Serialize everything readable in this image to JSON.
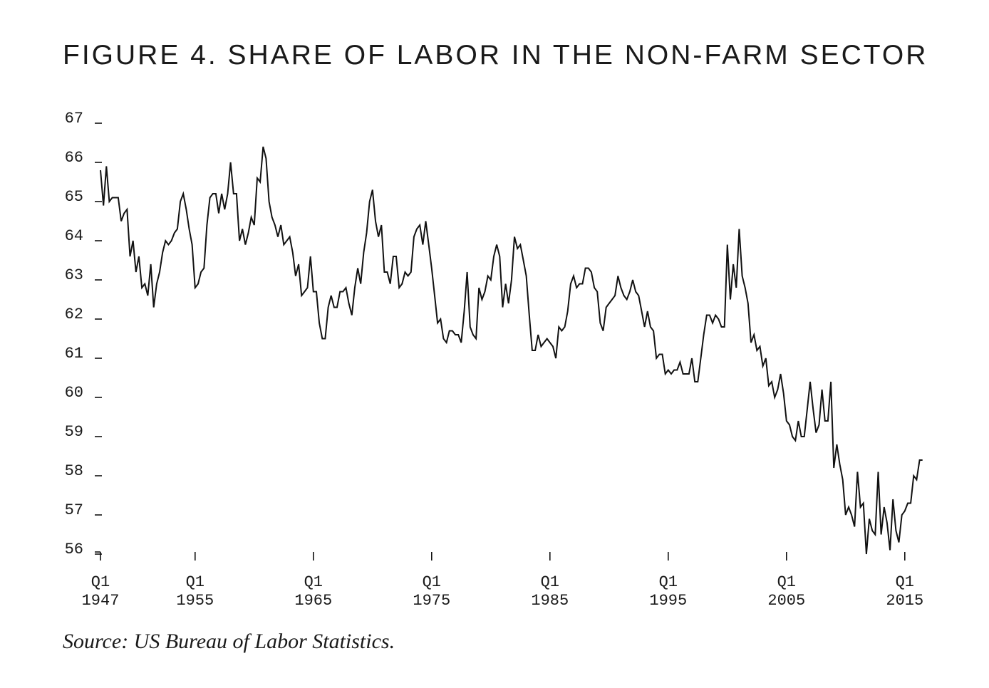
{
  "title": "FIGURE 4. SHARE OF LABOR IN THE NON-FARM SECTOR",
  "source": "Source: US Bureau of Labor Statistics.",
  "colors": {
    "line": "#111111",
    "text": "#1a1a1a",
    "background": "#ffffff"
  },
  "chart_data": {
    "type": "line",
    "title": "FIGURE 4. SHARE OF LABOR IN THE NON-FARM SECTOR",
    "xlabel": "",
    "ylabel": "",
    "ylim": [
      56,
      67
    ],
    "xlim": [
      1947.0,
      2015.75
    ],
    "grid": false,
    "y_ticks": [
      56,
      57,
      58,
      59,
      60,
      61,
      62,
      63,
      64,
      65,
      66,
      67
    ],
    "x_ticks": [
      {
        "x": 1947.0,
        "label": [
          "Q1",
          "1947"
        ]
      },
      {
        "x": 1955.0,
        "label": [
          "Q1",
          "1955"
        ]
      },
      {
        "x": 1965.0,
        "label": [
          "Q1",
          "1965"
        ]
      },
      {
        "x": 1975.0,
        "label": [
          "Q1",
          "1975"
        ]
      },
      {
        "x": 1985.0,
        "label": [
          "Q1",
          "1985"
        ]
      },
      {
        "x": 1995.0,
        "label": [
          "Q1",
          "1995"
        ]
      },
      {
        "x": 2005.0,
        "label": [
          "Q1",
          "2005"
        ]
      },
      {
        "x": 2015.0,
        "label": [
          "Q1",
          "2015"
        ]
      }
    ],
    "points": [
      [
        1947.0,
        65.8
      ],
      [
        1947.25,
        64.9
      ],
      [
        1947.5,
        65.9
      ],
      [
        1947.75,
        65.0
      ],
      [
        1948.0,
        65.1
      ],
      [
        1948.5,
        65.1
      ],
      [
        1948.75,
        64.5
      ],
      [
        1949.0,
        64.7
      ],
      [
        1949.25,
        64.8
      ],
      [
        1949.5,
        63.6
      ],
      [
        1949.75,
        64.0
      ],
      [
        1950.0,
        63.2
      ],
      [
        1950.25,
        63.6
      ],
      [
        1950.5,
        62.8
      ],
      [
        1950.75,
        62.9
      ],
      [
        1951.0,
        62.6
      ],
      [
        1951.25,
        63.4
      ],
      [
        1951.5,
        62.3
      ],
      [
        1951.75,
        62.9
      ],
      [
        1952.0,
        63.2
      ],
      [
        1952.25,
        63.7
      ],
      [
        1952.5,
        64.0
      ],
      [
        1952.75,
        63.9
      ],
      [
        1953.0,
        64.0
      ],
      [
        1953.25,
        64.2
      ],
      [
        1953.5,
        64.3
      ],
      [
        1953.75,
        65.0
      ],
      [
        1954.0,
        65.2
      ],
      [
        1954.25,
        64.8
      ],
      [
        1954.5,
        64.3
      ],
      [
        1954.75,
        63.9
      ],
      [
        1955.0,
        62.8
      ],
      [
        1955.25,
        62.9
      ],
      [
        1955.5,
        63.2
      ],
      [
        1955.75,
        63.3
      ],
      [
        1956.0,
        64.4
      ],
      [
        1956.25,
        65.1
      ],
      [
        1956.5,
        65.2
      ],
      [
        1956.75,
        65.2
      ],
      [
        1957.0,
        64.7
      ],
      [
        1957.25,
        65.2
      ],
      [
        1957.5,
        64.8
      ],
      [
        1957.75,
        65.2
      ],
      [
        1958.0,
        66.0
      ],
      [
        1958.25,
        65.2
      ],
      [
        1958.5,
        65.2
      ],
      [
        1958.75,
        64.0
      ],
      [
        1959.0,
        64.3
      ],
      [
        1959.25,
        63.9
      ],
      [
        1959.5,
        64.2
      ],
      [
        1959.75,
        64.6
      ],
      [
        1960.0,
        64.4
      ],
      [
        1960.25,
        65.6
      ],
      [
        1960.5,
        65.5
      ],
      [
        1960.75,
        66.4
      ],
      [
        1961.0,
        66.1
      ],
      [
        1961.25,
        65.0
      ],
      [
        1961.5,
        64.6
      ],
      [
        1961.75,
        64.4
      ],
      [
        1962.0,
        64.1
      ],
      [
        1962.25,
        64.4
      ],
      [
        1962.5,
        63.9
      ],
      [
        1962.75,
        64.0
      ],
      [
        1963.0,
        64.1
      ],
      [
        1963.25,
        63.7
      ],
      [
        1963.5,
        63.1
      ],
      [
        1963.75,
        63.4
      ],
      [
        1964.0,
        62.6
      ],
      [
        1964.25,
        62.7
      ],
      [
        1964.5,
        62.8
      ],
      [
        1964.75,
        63.6
      ],
      [
        1965.0,
        62.7
      ],
      [
        1965.25,
        62.7
      ],
      [
        1965.5,
        61.9
      ],
      [
        1965.75,
        61.5
      ],
      [
        1966.0,
        61.5
      ],
      [
        1966.25,
        62.3
      ],
      [
        1966.5,
        62.6
      ],
      [
        1966.75,
        62.3
      ],
      [
        1967.0,
        62.3
      ],
      [
        1967.25,
        62.7
      ],
      [
        1967.5,
        62.7
      ],
      [
        1967.75,
        62.8
      ],
      [
        1968.0,
        62.4
      ],
      [
        1968.25,
        62.1
      ],
      [
        1968.5,
        62.8
      ],
      [
        1968.75,
        63.3
      ],
      [
        1969.0,
        62.9
      ],
      [
        1969.25,
        63.7
      ],
      [
        1969.5,
        64.2
      ],
      [
        1969.75,
        65.0
      ],
      [
        1970.0,
        65.3
      ],
      [
        1970.25,
        64.5
      ],
      [
        1970.5,
        64.1
      ],
      [
        1970.75,
        64.4
      ],
      [
        1971.0,
        63.2
      ],
      [
        1971.25,
        63.2
      ],
      [
        1971.5,
        62.9
      ],
      [
        1971.75,
        63.6
      ],
      [
        1972.0,
        63.6
      ],
      [
        1972.25,
        62.8
      ],
      [
        1972.5,
        62.9
      ],
      [
        1972.75,
        63.2
      ],
      [
        1973.0,
        63.1
      ],
      [
        1973.25,
        63.2
      ],
      [
        1973.5,
        64.1
      ],
      [
        1973.75,
        64.3
      ],
      [
        1974.0,
        64.4
      ],
      [
        1974.25,
        63.9
      ],
      [
        1974.5,
        64.5
      ],
      [
        1974.75,
        63.9
      ],
      [
        1975.0,
        63.3
      ],
      [
        1975.25,
        62.6
      ],
      [
        1975.5,
        61.9
      ],
      [
        1975.75,
        62.0
      ],
      [
        1976.0,
        61.5
      ],
      [
        1976.25,
        61.4
      ],
      [
        1976.5,
        61.7
      ],
      [
        1976.75,
        61.7
      ],
      [
        1977.0,
        61.6
      ],
      [
        1977.25,
        61.6
      ],
      [
        1977.5,
        61.4
      ],
      [
        1977.75,
        62.2
      ],
      [
        1978.0,
        63.2
      ],
      [
        1978.25,
        61.8
      ],
      [
        1978.5,
        61.6
      ],
      [
        1978.75,
        61.5
      ],
      [
        1979.0,
        62.8
      ],
      [
        1979.25,
        62.5
      ],
      [
        1979.5,
        62.7
      ],
      [
        1979.75,
        63.1
      ],
      [
        1980.0,
        63.0
      ],
      [
        1980.25,
        63.6
      ],
      [
        1980.5,
        63.9
      ],
      [
        1980.75,
        63.6
      ],
      [
        1981.0,
        62.3
      ],
      [
        1981.25,
        62.9
      ],
      [
        1981.5,
        62.4
      ],
      [
        1981.75,
        63.0
      ],
      [
        1982.0,
        64.1
      ],
      [
        1982.25,
        63.8
      ],
      [
        1982.5,
        63.9
      ],
      [
        1982.75,
        63.5
      ],
      [
        1983.0,
        63.1
      ],
      [
        1983.25,
        62.1
      ],
      [
        1983.5,
        61.2
      ],
      [
        1983.75,
        61.2
      ],
      [
        1984.0,
        61.6
      ],
      [
        1984.25,
        61.3
      ],
      [
        1984.5,
        61.4
      ],
      [
        1984.75,
        61.5
      ],
      [
        1985.0,
        61.4
      ],
      [
        1985.25,
        61.3
      ],
      [
        1985.5,
        61.0
      ],
      [
        1985.75,
        61.8
      ],
      [
        1986.0,
        61.7
      ],
      [
        1986.25,
        61.8
      ],
      [
        1986.5,
        62.2
      ],
      [
        1986.75,
        62.9
      ],
      [
        1987.0,
        63.1
      ],
      [
        1987.25,
        62.8
      ],
      [
        1987.5,
        62.9
      ],
      [
        1987.75,
        62.9
      ],
      [
        1988.0,
        63.3
      ],
      [
        1988.25,
        63.3
      ],
      [
        1988.5,
        63.2
      ],
      [
        1988.75,
        62.8
      ],
      [
        1989.0,
        62.7
      ],
      [
        1989.25,
        61.9
      ],
      [
        1989.5,
        61.7
      ],
      [
        1989.75,
        62.3
      ],
      [
        1990.0,
        62.4
      ],
      [
        1990.25,
        62.5
      ],
      [
        1990.5,
        62.6
      ],
      [
        1990.75,
        63.1
      ],
      [
        1991.0,
        62.8
      ],
      [
        1991.25,
        62.6
      ],
      [
        1991.5,
        62.5
      ],
      [
        1991.75,
        62.7
      ],
      [
        1992.0,
        63.0
      ],
      [
        1992.25,
        62.7
      ],
      [
        1992.5,
        62.6
      ],
      [
        1992.75,
        62.2
      ],
      [
        1993.0,
        61.8
      ],
      [
        1993.25,
        62.2
      ],
      [
        1993.5,
        61.8
      ],
      [
        1993.75,
        61.7
      ],
      [
        1994.0,
        61.0
      ],
      [
        1994.25,
        61.1
      ],
      [
        1994.5,
        61.1
      ],
      [
        1994.75,
        60.6
      ],
      [
        1995.0,
        60.7
      ],
      [
        1995.25,
        60.6
      ],
      [
        1995.5,
        60.7
      ],
      [
        1995.75,
        60.7
      ],
      [
        1996.0,
        60.9
      ],
      [
        1996.25,
        60.6
      ],
      [
        1996.5,
        60.6
      ],
      [
        1996.75,
        60.6
      ],
      [
        1997.0,
        61.0
      ],
      [
        1997.25,
        60.4
      ],
      [
        1997.5,
        60.4
      ],
      [
        1997.75,
        61.0
      ],
      [
        1998.0,
        61.6
      ],
      [
        1998.25,
        62.1
      ],
      [
        1998.5,
        62.1
      ],
      [
        1998.75,
        61.9
      ],
      [
        1999.0,
        62.1
      ],
      [
        1999.25,
        62.0
      ],
      [
        1999.5,
        61.8
      ],
      [
        1999.75,
        61.8
      ],
      [
        2000.0,
        63.9
      ],
      [
        2000.25,
        62.5
      ],
      [
        2000.5,
        63.4
      ],
      [
        2000.75,
        62.8
      ],
      [
        2001.0,
        64.3
      ],
      [
        2001.25,
        63.1
      ],
      [
        2001.5,
        62.8
      ],
      [
        2001.75,
        62.4
      ],
      [
        2002.0,
        61.4
      ],
      [
        2002.25,
        61.6
      ],
      [
        2002.5,
        61.2
      ],
      [
        2002.75,
        61.3
      ],
      [
        2003.0,
        60.8
      ],
      [
        2003.25,
        61.0
      ],
      [
        2003.5,
        60.3
      ],
      [
        2003.75,
        60.4
      ],
      [
        2004.0,
        60.0
      ],
      [
        2004.25,
        60.2
      ],
      [
        2004.5,
        60.6
      ],
      [
        2004.75,
        60.1
      ],
      [
        2005.0,
        59.4
      ],
      [
        2005.25,
        59.3
      ],
      [
        2005.5,
        59.0
      ],
      [
        2005.75,
        58.9
      ],
      [
        2006.0,
        59.4
      ],
      [
        2006.25,
        59.0
      ],
      [
        2006.5,
        59.0
      ],
      [
        2006.75,
        59.7
      ],
      [
        2007.0,
        60.4
      ],
      [
        2007.25,
        59.7
      ],
      [
        2007.5,
        59.1
      ],
      [
        2007.75,
        59.3
      ],
      [
        2008.0,
        60.2
      ],
      [
        2008.25,
        59.4
      ],
      [
        2008.5,
        59.4
      ],
      [
        2008.75,
        60.4
      ],
      [
        2009.0,
        58.2
      ],
      [
        2009.25,
        58.8
      ],
      [
        2009.5,
        58.3
      ],
      [
        2009.75,
        57.9
      ],
      [
        2010.0,
        57.0
      ],
      [
        2010.25,
        57.2
      ],
      [
        2010.5,
        57.0
      ],
      [
        2010.75,
        56.7
      ],
      [
        2011.0,
        58.1
      ],
      [
        2011.25,
        57.2
      ],
      [
        2011.5,
        57.3
      ],
      [
        2011.75,
        56.0
      ],
      [
        2012.0,
        56.9
      ],
      [
        2012.25,
        56.6
      ],
      [
        2012.5,
        56.5
      ],
      [
        2012.75,
        58.1
      ],
      [
        2013.0,
        56.5
      ],
      [
        2013.25,
        57.2
      ],
      [
        2013.5,
        56.8
      ],
      [
        2013.75,
        56.1
      ],
      [
        2014.0,
        57.4
      ],
      [
        2014.25,
        56.6
      ],
      [
        2014.5,
        56.3
      ],
      [
        2014.75,
        57.0
      ],
      [
        2015.0,
        57.1
      ],
      [
        2015.25,
        57.3
      ],
      [
        2015.5,
        57.3
      ],
      [
        2015.75,
        58.0
      ],
      [
        2016.0,
        57.9
      ],
      [
        2016.25,
        58.4
      ],
      [
        2016.5,
        58.4
      ]
    ]
  }
}
